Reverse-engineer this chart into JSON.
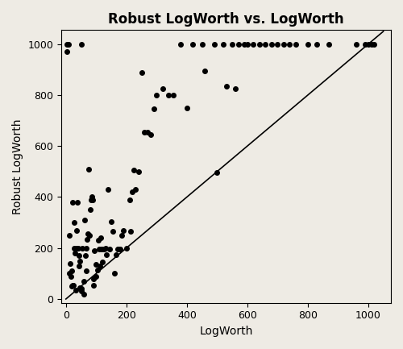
{
  "title": "Robust LogWorth vs. LogWorth",
  "xlabel": "LogWorth",
  "ylabel": "Robust LogWorth",
  "xlim": [
    -15,
    1075
  ],
  "ylim": [
    -15,
    1055
  ],
  "xticks": [
    0,
    200,
    400,
    600,
    800,
    1000
  ],
  "yticks": [
    0,
    200,
    400,
    600,
    800,
    1000
  ],
  "point_color": "#000000",
  "point_size": 16,
  "background_color": "#eeebe4",
  "title_fontsize": 12,
  "label_fontsize": 10,
  "tick_fontsize": 9,
  "x": [
    2,
    4,
    8,
    10,
    12,
    14,
    16,
    18,
    20,
    22,
    23,
    25,
    27,
    28,
    30,
    32,
    34,
    36,
    38,
    40,
    42,
    43,
    45,
    47,
    50,
    50,
    52,
    55,
    58,
    60,
    62,
    64,
    66,
    68,
    70,
    72,
    75,
    78,
    80,
    82,
    85,
    88,
    90,
    92,
    95,
    98,
    100,
    105,
    108,
    110,
    112,
    115,
    118,
    120,
    125,
    130,
    135,
    140,
    145,
    150,
    155,
    160,
    165,
    170,
    175,
    180,
    185,
    190,
    200,
    210,
    215,
    220,
    225,
    230,
    240,
    250,
    260,
    270,
    280,
    290,
    300,
    320,
    340,
    355,
    380,
    400,
    420,
    450,
    460,
    490,
    500,
    520,
    530,
    550,
    560,
    570,
    590,
    600,
    620,
    640,
    660,
    680,
    700,
    720,
    740,
    760,
    800,
    830,
    870,
    960,
    990,
    1000,
    1010,
    1020
  ],
  "y": [
    1000,
    970,
    1000,
    250,
    100,
    140,
    90,
    110,
    50,
    55,
    380,
    55,
    300,
    200,
    180,
    35,
    200,
    270,
    380,
    200,
    130,
    170,
    150,
    45,
    40,
    1000,
    30,
    200,
    70,
    20,
    310,
    170,
    200,
    110,
    235,
    255,
    510,
    250,
    350,
    390,
    400,
    390,
    55,
    80,
    190,
    90,
    135,
    115,
    230,
    195,
    130,
    240,
    195,
    145,
    195,
    200,
    175,
    430,
    195,
    305,
    265,
    100,
    175,
    195,
    195,
    195,
    250,
    270,
    200,
    390,
    265,
    420,
    505,
    430,
    500,
    890,
    655,
    655,
    645,
    745,
    800,
    825,
    800,
    800,
    1000,
    750,
    1000,
    1000,
    895,
    1000,
    495,
    1000,
    835,
    1000,
    825,
    1000,
    1000,
    1000,
    1000,
    1000,
    1000,
    1000,
    1000,
    1000,
    1000,
    1000,
    1000,
    1000,
    1000,
    1000,
    1000,
    1000,
    1000,
    1000
  ]
}
